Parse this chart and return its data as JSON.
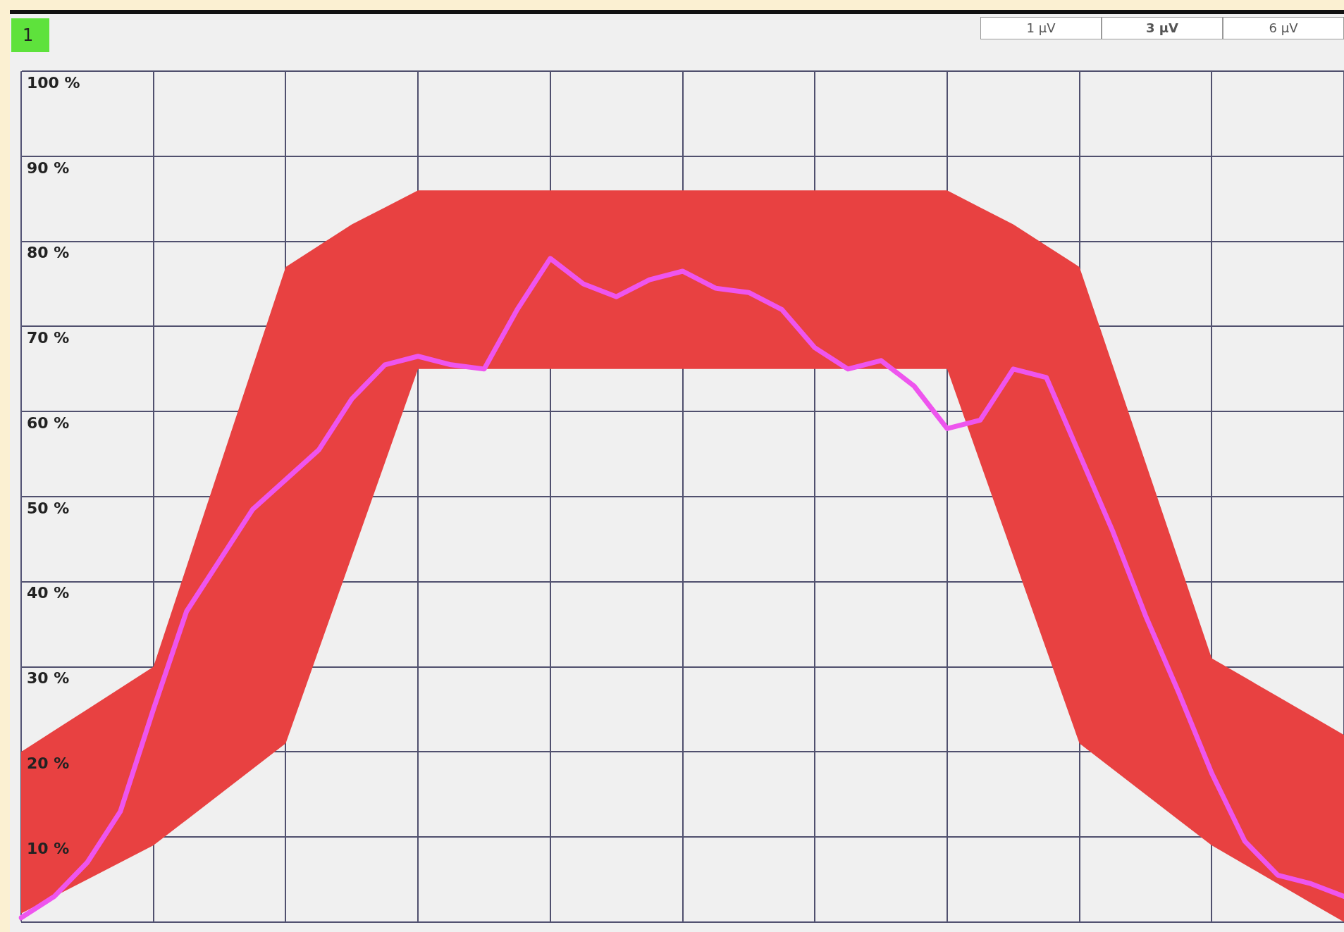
{
  "chart_data": {
    "type": "line",
    "categories": [
      null,
      null,
      null,
      null,
      null,
      null,
      null,
      null,
      null,
      null,
      null,
      null,
      null,
      null,
      null,
      null,
      null,
      null,
      null,
      null,
      null,
      null,
      null,
      null,
      null,
      null,
      null,
      null,
      null,
      null,
      null,
      null,
      null,
      null,
      null,
      null,
      null,
      null,
      null,
      null,
      null
    ],
    "series": [
      {
        "color": "#ee55ee",
        "values": [
          0.5,
          3,
          7,
          13,
          25,
          36.5,
          42.5,
          48.5,
          52,
          55.5,
          61.5,
          65.5,
          66.5,
          65.5,
          65,
          72,
          78,
          75,
          73.5,
          75.5,
          76.5,
          74.5,
          74,
          72,
          67.5,
          65,
          66,
          63,
          58,
          59,
          65,
          64,
          55,
          46,
          36,
          27,
          17.5,
          9.5,
          5.5,
          4.5,
          3
        ],
        "upper": [
          20,
          22.5,
          25,
          27.5,
          30,
          41.75,
          53.5,
          65.25,
          77,
          79.5,
          82,
          84,
          86,
          86,
          86,
          86,
          86,
          86,
          86,
          86,
          86,
          86,
          86,
          86,
          86,
          86,
          86,
          86,
          86,
          84,
          82,
          79.5,
          77,
          65.5,
          54,
          42.5,
          31,
          28.75,
          26.5,
          24.25,
          22
        ],
        "lower": [
          1,
          3,
          5,
          7,
          9,
          12,
          15,
          18,
          21,
          32,
          43,
          54,
          65,
          65,
          65,
          65,
          65,
          65,
          65,
          65,
          65,
          65,
          65,
          65,
          65,
          65,
          65,
          65,
          65,
          54,
          43,
          32,
          21,
          18,
          15,
          12,
          9,
          6.75,
          4.5,
          2.25,
          0
        ]
      }
    ],
    "ylim": [
      0,
      100
    ],
    "yticks": [
      {
        "value": 0,
        "label": null
      },
      {
        "value": 10,
        "label": "10 %"
      },
      {
        "value": 20,
        "label": "20 %"
      },
      {
        "value": 30,
        "label": "30 %"
      },
      {
        "value": 40,
        "label": "40 %"
      },
      {
        "value": 50,
        "label": "50 %"
      },
      {
        "value": 60,
        "label": "60 %"
      },
      {
        "value": 70,
        "label": "70 %"
      },
      {
        "value": 80,
        "label": "80 %"
      },
      {
        "value": 90,
        "label": "90 %"
      },
      {
        "value": 100,
        "label": "100 %"
      }
    ],
    "tick_labels": "y",
    "grid": true,
    "legend": false,
    "marker": "none",
    "line_style": "solid",
    "annotations": [
      "1",
      "1 µV",
      "3 µV",
      "6 µV"
    ]
  }
}
